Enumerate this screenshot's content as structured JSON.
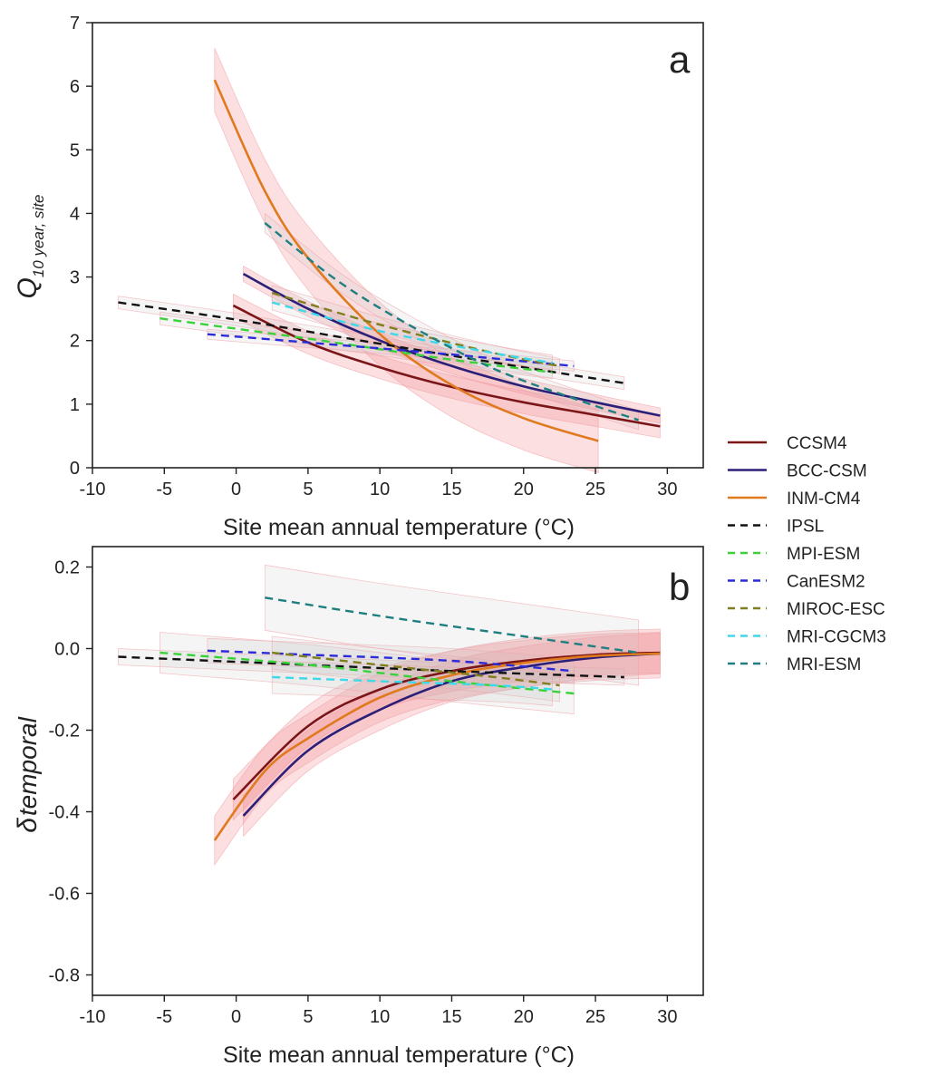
{
  "figure": {
    "xlabel": "Site mean annual temperature (°C)"
  },
  "legend": [
    {
      "name": "CCSM4",
      "color": "#7b1518",
      "dash": false
    },
    {
      "name": "BCC-CSM",
      "color": "#2b1f78",
      "dash": false
    },
    {
      "name": "INM-CM4",
      "color": "#e07a1f",
      "dash": false
    },
    {
      "name": "IPSL",
      "color": "#111111",
      "dash": true
    },
    {
      "name": "MPI-ESM",
      "color": "#3ad13a",
      "dash": true
    },
    {
      "name": "CanESM2",
      "color": "#2a2ad8",
      "dash": true
    },
    {
      "name": "MIROC-ESC",
      "color": "#7f7f1e",
      "dash": true
    },
    {
      "name": "MRI-CGCM3",
      "color": "#3fd8e8",
      "dash": true
    },
    {
      "name": "MRI-ESM",
      "color": "#1f7f80",
      "dash": true
    }
  ],
  "chart_data": [
    {
      "type": "line",
      "panel": "a",
      "xlabel": "Site mean annual temperature (°C)",
      "ylabel_main": "Q",
      "ylabel_sub": "10 year, site",
      "xlim": [
        -10,
        32.5
      ],
      "ylim": [
        0,
        7
      ],
      "xticks": [
        -10,
        -5,
        0,
        5,
        10,
        15,
        20,
        25,
        30
      ],
      "yticks": [
        0,
        1,
        2,
        3,
        4,
        5,
        6,
        7
      ],
      "series": [
        {
          "name": "CCSM4",
          "x": [
            -0.2,
            5,
            10,
            15,
            20,
            25,
            29.5
          ],
          "y": [
            2.55,
            1.97,
            1.58,
            1.27,
            1.03,
            0.83,
            0.65
          ],
          "band": 0.18
        },
        {
          "name": "BCC-CSM",
          "x": [
            0.5,
            5,
            10,
            15,
            20,
            25,
            29.5
          ],
          "y": [
            3.05,
            2.5,
            2.0,
            1.6,
            1.28,
            1.03,
            0.82
          ],
          "band": 0.12
        },
        {
          "name": "INM-CM4",
          "x": [
            -1.5,
            2,
            5,
            10,
            15,
            20,
            25.2
          ],
          "y": [
            6.1,
            4.35,
            3.3,
            2.1,
            1.3,
            0.78,
            0.42
          ],
          "band": 0.5
        },
        {
          "name": "IPSL",
          "x": [
            -8.2,
            0,
            10,
            20,
            27
          ],
          "y": [
            2.6,
            2.33,
            1.95,
            1.58,
            1.33
          ],
          "band": 0.1
        },
        {
          "name": "MPI-ESM",
          "x": [
            -5.3,
            5,
            15,
            22
          ],
          "y": [
            2.35,
            2.03,
            1.7,
            1.5
          ],
          "band": 0.1
        },
        {
          "name": "CanESM2",
          "x": [
            -2,
            5,
            15,
            23.5
          ],
          "y": [
            2.1,
            1.97,
            1.78,
            1.6
          ],
          "band": 0.08
        },
        {
          "name": "MIROC-ESC",
          "x": [
            2.5,
            10,
            18,
            22.5
          ],
          "y": [
            2.75,
            2.25,
            1.8,
            1.6
          ],
          "band": 0.12
        },
        {
          "name": "MRI-CGCM3",
          "x": [
            2.5,
            10,
            18,
            22
          ],
          "y": [
            2.6,
            2.15,
            1.8,
            1.65
          ],
          "band": 0.12
        },
        {
          "name": "MRI-ESM",
          "x": [
            2,
            7,
            12,
            18,
            24,
            28
          ],
          "y": [
            3.85,
            2.95,
            2.25,
            1.55,
            1.05,
            0.75
          ],
          "band": 0.15
        }
      ]
    },
    {
      "type": "line",
      "panel": "b",
      "xlabel": "Site mean annual temperature (°C)",
      "ylabel_main": "δ",
      "ylabel_sub": "temporal",
      "xlim": [
        -10,
        32.5
      ],
      "ylim": [
        -0.85,
        0.25
      ],
      "xticks": [
        -10,
        -5,
        0,
        5,
        10,
        15,
        20,
        25,
        30
      ],
      "yticks": [
        0.2,
        0.0,
        -0.2,
        -0.4,
        -0.6,
        -0.8
      ],
      "ytick_labels": [
        "0.2",
        "0.0",
        "-0.2",
        "-0.4",
        "-0.6",
        "-0.8"
      ],
      "series": [
        {
          "name": "CCSM4",
          "x": [
            -0.2,
            5,
            10,
            15,
            20,
            25,
            29.5
          ],
          "y": [
            -0.37,
            -0.19,
            -0.1,
            -0.055,
            -0.03,
            -0.015,
            -0.01
          ],
          "band": 0.05
        },
        {
          "name": "BCC-CSM",
          "x": [
            0.5,
            5,
            10,
            15,
            20,
            25,
            29.5
          ],
          "y": [
            -0.41,
            -0.25,
            -0.15,
            -0.08,
            -0.045,
            -0.022,
            -0.012
          ],
          "band": 0.05
        },
        {
          "name": "INM-CM4",
          "x": [
            -1.5,
            2,
            5,
            10,
            15,
            20,
            25,
            29.5
          ],
          "y": [
            -0.47,
            -0.3,
            -0.22,
            -0.12,
            -0.065,
            -0.035,
            -0.018,
            -0.012
          ],
          "band": 0.06
        },
        {
          "name": "IPSL",
          "x": [
            -8.2,
            5,
            15,
            27
          ],
          "y": [
            -0.02,
            -0.04,
            -0.055,
            -0.07
          ],
          "band": 0.02
        },
        {
          "name": "MPI-ESM",
          "x": [
            -5.3,
            5,
            15,
            23.5
          ],
          "y": [
            -0.01,
            -0.04,
            -0.08,
            -0.11
          ],
          "band": 0.05
        },
        {
          "name": "CanESM2",
          "x": [
            -2,
            5,
            15,
            23.5
          ],
          "y": [
            -0.005,
            -0.015,
            -0.03,
            -0.055
          ],
          "band": 0.03
        },
        {
          "name": "MIROC-ESC",
          "x": [
            2.5,
            10,
            18,
            22.5
          ],
          "y": [
            -0.01,
            -0.04,
            -0.07,
            -0.09
          ],
          "band": 0.04
        },
        {
          "name": "MRI-CGCM3",
          "x": [
            2.5,
            10,
            18,
            22
          ],
          "y": [
            -0.07,
            -0.08,
            -0.09,
            -0.1
          ],
          "band": 0.04
        },
        {
          "name": "MRI-ESM",
          "x": [
            2,
            10,
            20,
            28
          ],
          "y": [
            0.125,
            0.08,
            0.03,
            -0.01
          ],
          "band": 0.08
        }
      ]
    }
  ]
}
